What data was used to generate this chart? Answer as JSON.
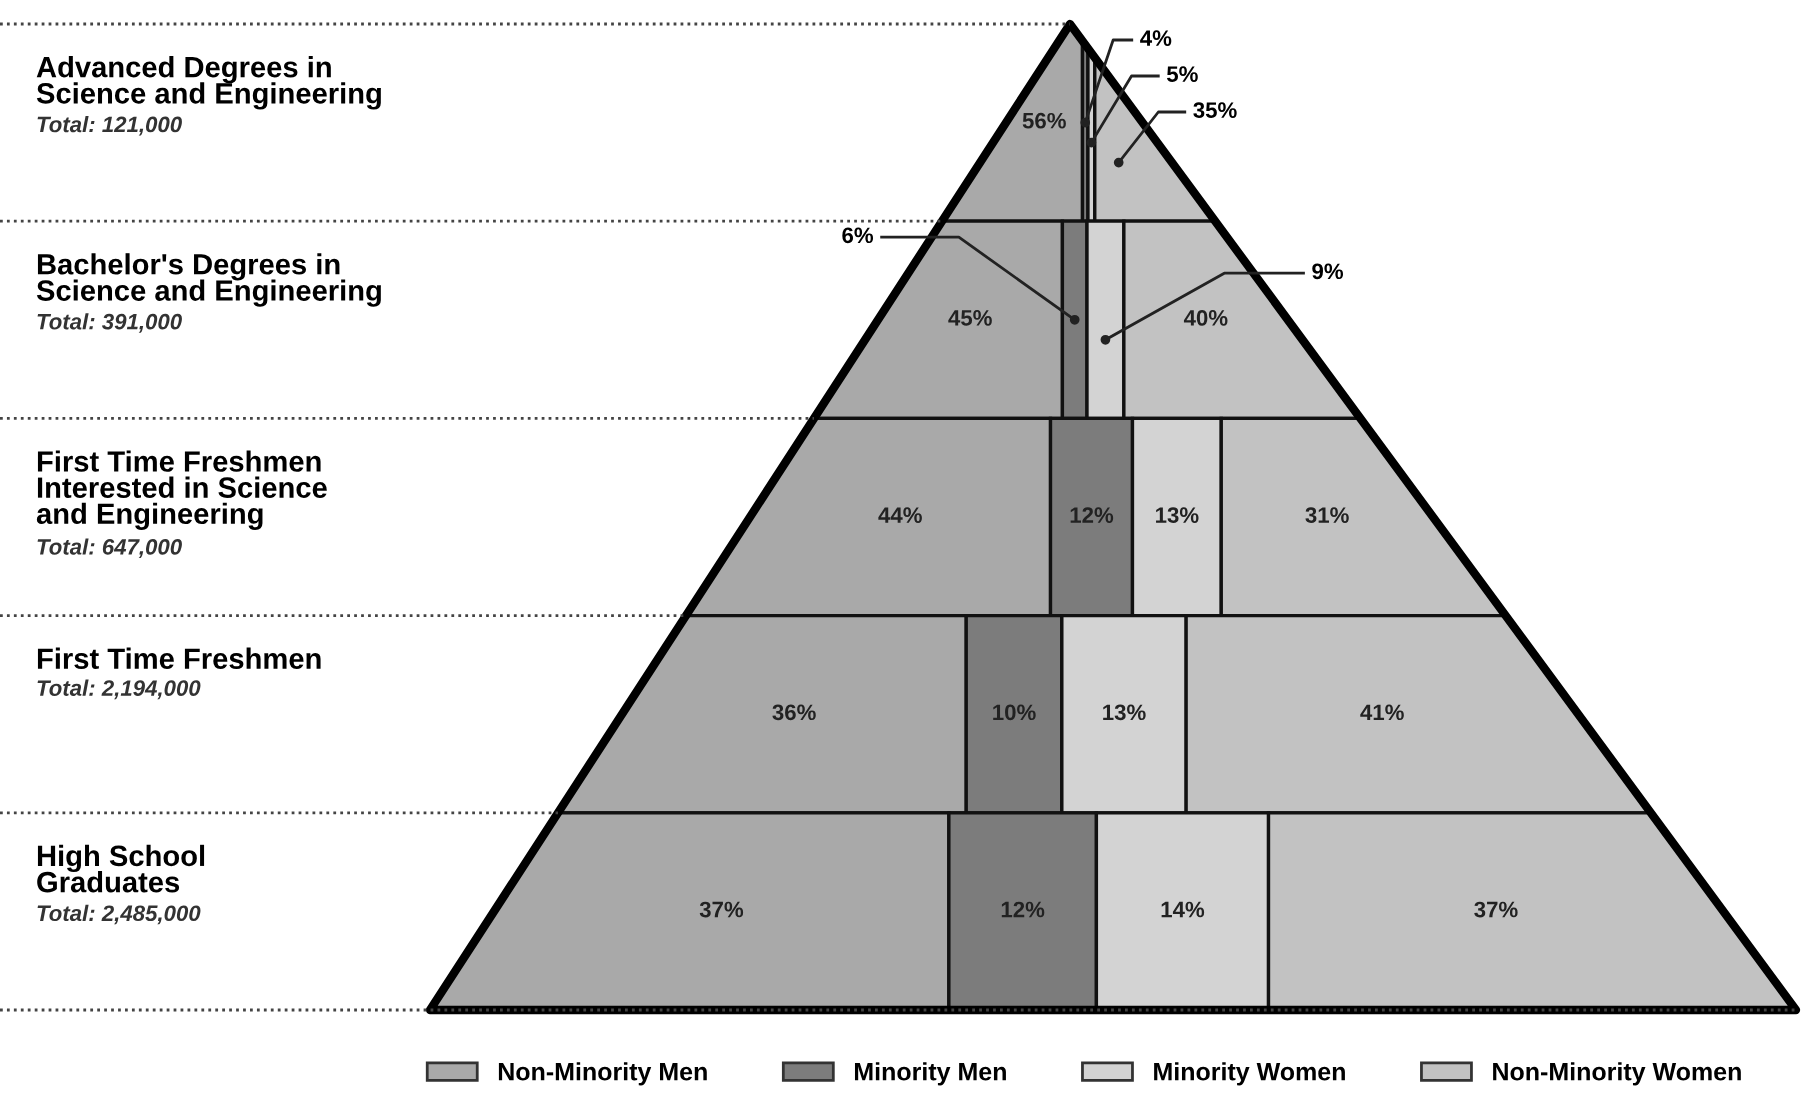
{
  "chart_data": {
    "type": "other",
    "categories": [
      "Advanced Degrees in\nScience and Engineering",
      "Bachelor's Degrees in\nScience and Engineering",
      "First Time Freshmen\nInterested in Science\nand Engineering",
      "First Time Freshmen",
      "High School\nGraduates"
    ],
    "annotations": [
      "Total: 121,000",
      "Total: 391,000",
      "Total: 647,000",
      "Total: 2,194,000",
      "Total: 2,485,000"
    ],
    "series": [
      {
        "name": "Non-Minority Men",
        "color": "#a9a9a9",
        "values": [
          56,
          45,
          44,
          36,
          37
        ],
        "value_labels": [
          "56%",
          "45%",
          "44%",
          "36%",
          "37%"
        ]
      },
      {
        "name": "Minority Men",
        "color": "#7c7c7c",
        "values": [
          4,
          6,
          12,
          10,
          12
        ],
        "value_labels": [
          "4%",
          "6%",
          "12%",
          "10%",
          "12%"
        ]
      },
      {
        "name": "Minority Women",
        "color": "#d3d3d3",
        "values": [
          5,
          9,
          13,
          13,
          14
        ],
        "value_labels": [
          "5%",
          "9%",
          "13%",
          "13%",
          "14%"
        ]
      },
      {
        "name": "Non-Minority Women",
        "color": "#c2c2c2",
        "values": [
          35,
          40,
          31,
          41,
          37
        ],
        "value_labels": [
          "35%",
          "40%",
          "31%",
          "41%",
          "37%"
        ]
      }
    ],
    "legend": "bottom"
  }
}
